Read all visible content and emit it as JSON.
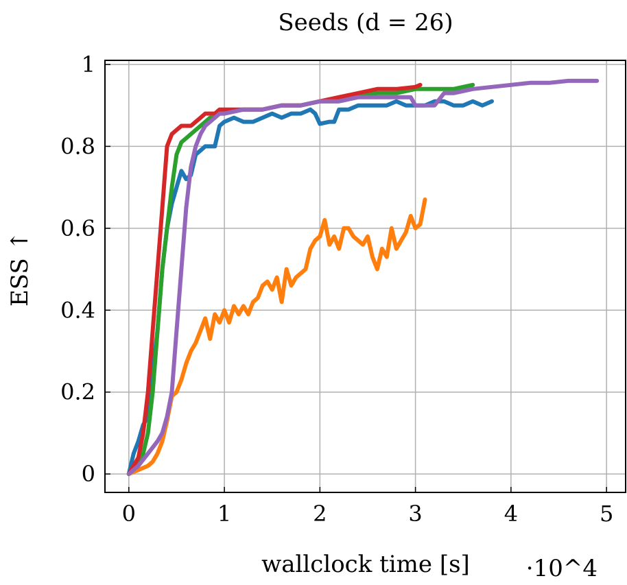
{
  "chart_data": {
    "type": "line",
    "title": "Seeds (d = 26)",
    "xlabel": "wallclock time [s]",
    "ylabel": "ESS ↑",
    "x_multiplier": "·10^4",
    "xlim": [
      -0.25,
      5.2
    ],
    "ylim": [
      -0.045,
      1.01
    ],
    "x_ticks": [
      0,
      1,
      2,
      3,
      4,
      5
    ],
    "y_ticks": [
      0,
      0.2,
      0.4,
      0.6,
      0.8,
      1
    ],
    "x_tick_labels": [
      "0",
      "1",
      "2",
      "3",
      "4",
      "5"
    ],
    "y_tick_labels": [
      "0",
      "0.2",
      "0.4",
      "0.6",
      "0.8",
      "1"
    ],
    "grid": true,
    "series": [
      {
        "color": "#1f77b4",
        "x": [
          0,
          0.05,
          0.1,
          0.15,
          0.2,
          0.25,
          0.3,
          0.35,
          0.4,
          0.45,
          0.5,
          0.55,
          0.6,
          0.65,
          0.7,
          0.75,
          0.8,
          0.85,
          0.9,
          0.95,
          1.0,
          1.1,
          1.2,
          1.3,
          1.4,
          1.5,
          1.6,
          1.7,
          1.8,
          1.9,
          1.95,
          2.0,
          2.1,
          2.15,
          2.2,
          2.3,
          2.4,
          2.5,
          2.6,
          2.7,
          2.8,
          2.9,
          3.0,
          3.1,
          3.2,
          3.3,
          3.4,
          3.5,
          3.6,
          3.7,
          3.8
        ],
        "y": [
          0,
          0.05,
          0.08,
          0.12,
          0.14,
          0.25,
          0.35,
          0.5,
          0.6,
          0.66,
          0.7,
          0.74,
          0.72,
          0.73,
          0.78,
          0.79,
          0.8,
          0.8,
          0.8,
          0.85,
          0.86,
          0.87,
          0.86,
          0.86,
          0.87,
          0.88,
          0.87,
          0.88,
          0.88,
          0.89,
          0.88,
          0.855,
          0.86,
          0.86,
          0.89,
          0.89,
          0.9,
          0.9,
          0.9,
          0.9,
          0.91,
          0.9,
          0.9,
          0.9,
          0.91,
          0.91,
          0.9,
          0.9,
          0.91,
          0.9,
          0.91
        ]
      },
      {
        "color": "#ff7f0e",
        "x": [
          0,
          0.1,
          0.2,
          0.25,
          0.3,
          0.35,
          0.4,
          0.45,
          0.5,
          0.55,
          0.6,
          0.65,
          0.7,
          0.75,
          0.8,
          0.85,
          0.9,
          0.95,
          1.0,
          1.05,
          1.1,
          1.15,
          1.2,
          1.25,
          1.3,
          1.35,
          1.4,
          1.45,
          1.5,
          1.55,
          1.6,
          1.65,
          1.7,
          1.75,
          1.8,
          1.85,
          1.9,
          1.95,
          2.0,
          2.05,
          2.1,
          2.15,
          2.2,
          2.25,
          2.3,
          2.35,
          2.4,
          2.45,
          2.5,
          2.55,
          2.6,
          2.65,
          2.7,
          2.75,
          2.8,
          2.85,
          2.9,
          2.95,
          3.0,
          3.05,
          3.1
        ],
        "y": [
          0,
          0.01,
          0.02,
          0.03,
          0.05,
          0.08,
          0.13,
          0.19,
          0.2,
          0.23,
          0.27,
          0.3,
          0.32,
          0.35,
          0.38,
          0.33,
          0.39,
          0.37,
          0.4,
          0.37,
          0.41,
          0.39,
          0.41,
          0.39,
          0.42,
          0.43,
          0.46,
          0.47,
          0.45,
          0.48,
          0.42,
          0.5,
          0.46,
          0.48,
          0.49,
          0.5,
          0.55,
          0.57,
          0.58,
          0.62,
          0.56,
          0.58,
          0.55,
          0.6,
          0.6,
          0.58,
          0.57,
          0.56,
          0.58,
          0.53,
          0.5,
          0.55,
          0.53,
          0.6,
          0.55,
          0.57,
          0.59,
          0.63,
          0.6,
          0.61,
          0.67
        ]
      },
      {
        "color": "#2ca02c",
        "x": [
          0,
          0.1,
          0.15,
          0.2,
          0.25,
          0.3,
          0.35,
          0.4,
          0.45,
          0.5,
          0.55,
          0.6,
          0.65,
          0.7,
          0.75,
          0.8,
          0.85,
          0.9,
          0.95,
          1.0,
          1.2,
          1.4,
          1.6,
          1.8,
          2.0,
          2.2,
          2.4,
          2.6,
          2.8,
          3.0,
          3.2,
          3.4,
          3.6
        ],
        "y": [
          0,
          0.03,
          0.05,
          0.1,
          0.2,
          0.35,
          0.5,
          0.6,
          0.7,
          0.78,
          0.81,
          0.82,
          0.83,
          0.84,
          0.85,
          0.86,
          0.87,
          0.87,
          0.88,
          0.88,
          0.89,
          0.89,
          0.9,
          0.9,
          0.91,
          0.91,
          0.92,
          0.93,
          0.93,
          0.94,
          0.94,
          0.94,
          0.95
        ]
      },
      {
        "color": "#d62728",
        "x": [
          0,
          0.1,
          0.15,
          0.2,
          0.25,
          0.3,
          0.35,
          0.4,
          0.45,
          0.5,
          0.55,
          0.6,
          0.65,
          0.7,
          0.75,
          0.8,
          0.85,
          0.9,
          0.95,
          1.0,
          1.2,
          1.4,
          1.6,
          1.8,
          2.0,
          2.2,
          2.4,
          2.6,
          2.8,
          3.0,
          3.05
        ],
        "y": [
          0,
          0.04,
          0.1,
          0.2,
          0.35,
          0.5,
          0.65,
          0.8,
          0.83,
          0.84,
          0.85,
          0.85,
          0.85,
          0.86,
          0.87,
          0.88,
          0.88,
          0.88,
          0.89,
          0.89,
          0.89,
          0.89,
          0.9,
          0.9,
          0.91,
          0.92,
          0.93,
          0.94,
          0.94,
          0.945,
          0.95
        ]
      },
      {
        "color": "#9467bd",
        "x": [
          0,
          0.1,
          0.2,
          0.3,
          0.35,
          0.4,
          0.45,
          0.5,
          0.55,
          0.6,
          0.65,
          0.7,
          0.75,
          0.8,
          0.85,
          0.9,
          0.95,
          1.0,
          1.2,
          1.4,
          1.6,
          1.8,
          2.0,
          2.2,
          2.4,
          2.6,
          2.8,
          2.95,
          3.0,
          3.2,
          3.3,
          3.4,
          3.6,
          3.8,
          4.0,
          4.2,
          4.4,
          4.6,
          4.8,
          4.9
        ],
        "y": [
          0,
          0.02,
          0.05,
          0.08,
          0.1,
          0.14,
          0.2,
          0.35,
          0.5,
          0.65,
          0.75,
          0.8,
          0.83,
          0.85,
          0.86,
          0.87,
          0.88,
          0.88,
          0.89,
          0.89,
          0.9,
          0.9,
          0.91,
          0.91,
          0.92,
          0.92,
          0.92,
          0.92,
          0.9,
          0.9,
          0.93,
          0.93,
          0.94,
          0.945,
          0.95,
          0.955,
          0.955,
          0.96,
          0.96,
          0.96
        ]
      }
    ]
  }
}
